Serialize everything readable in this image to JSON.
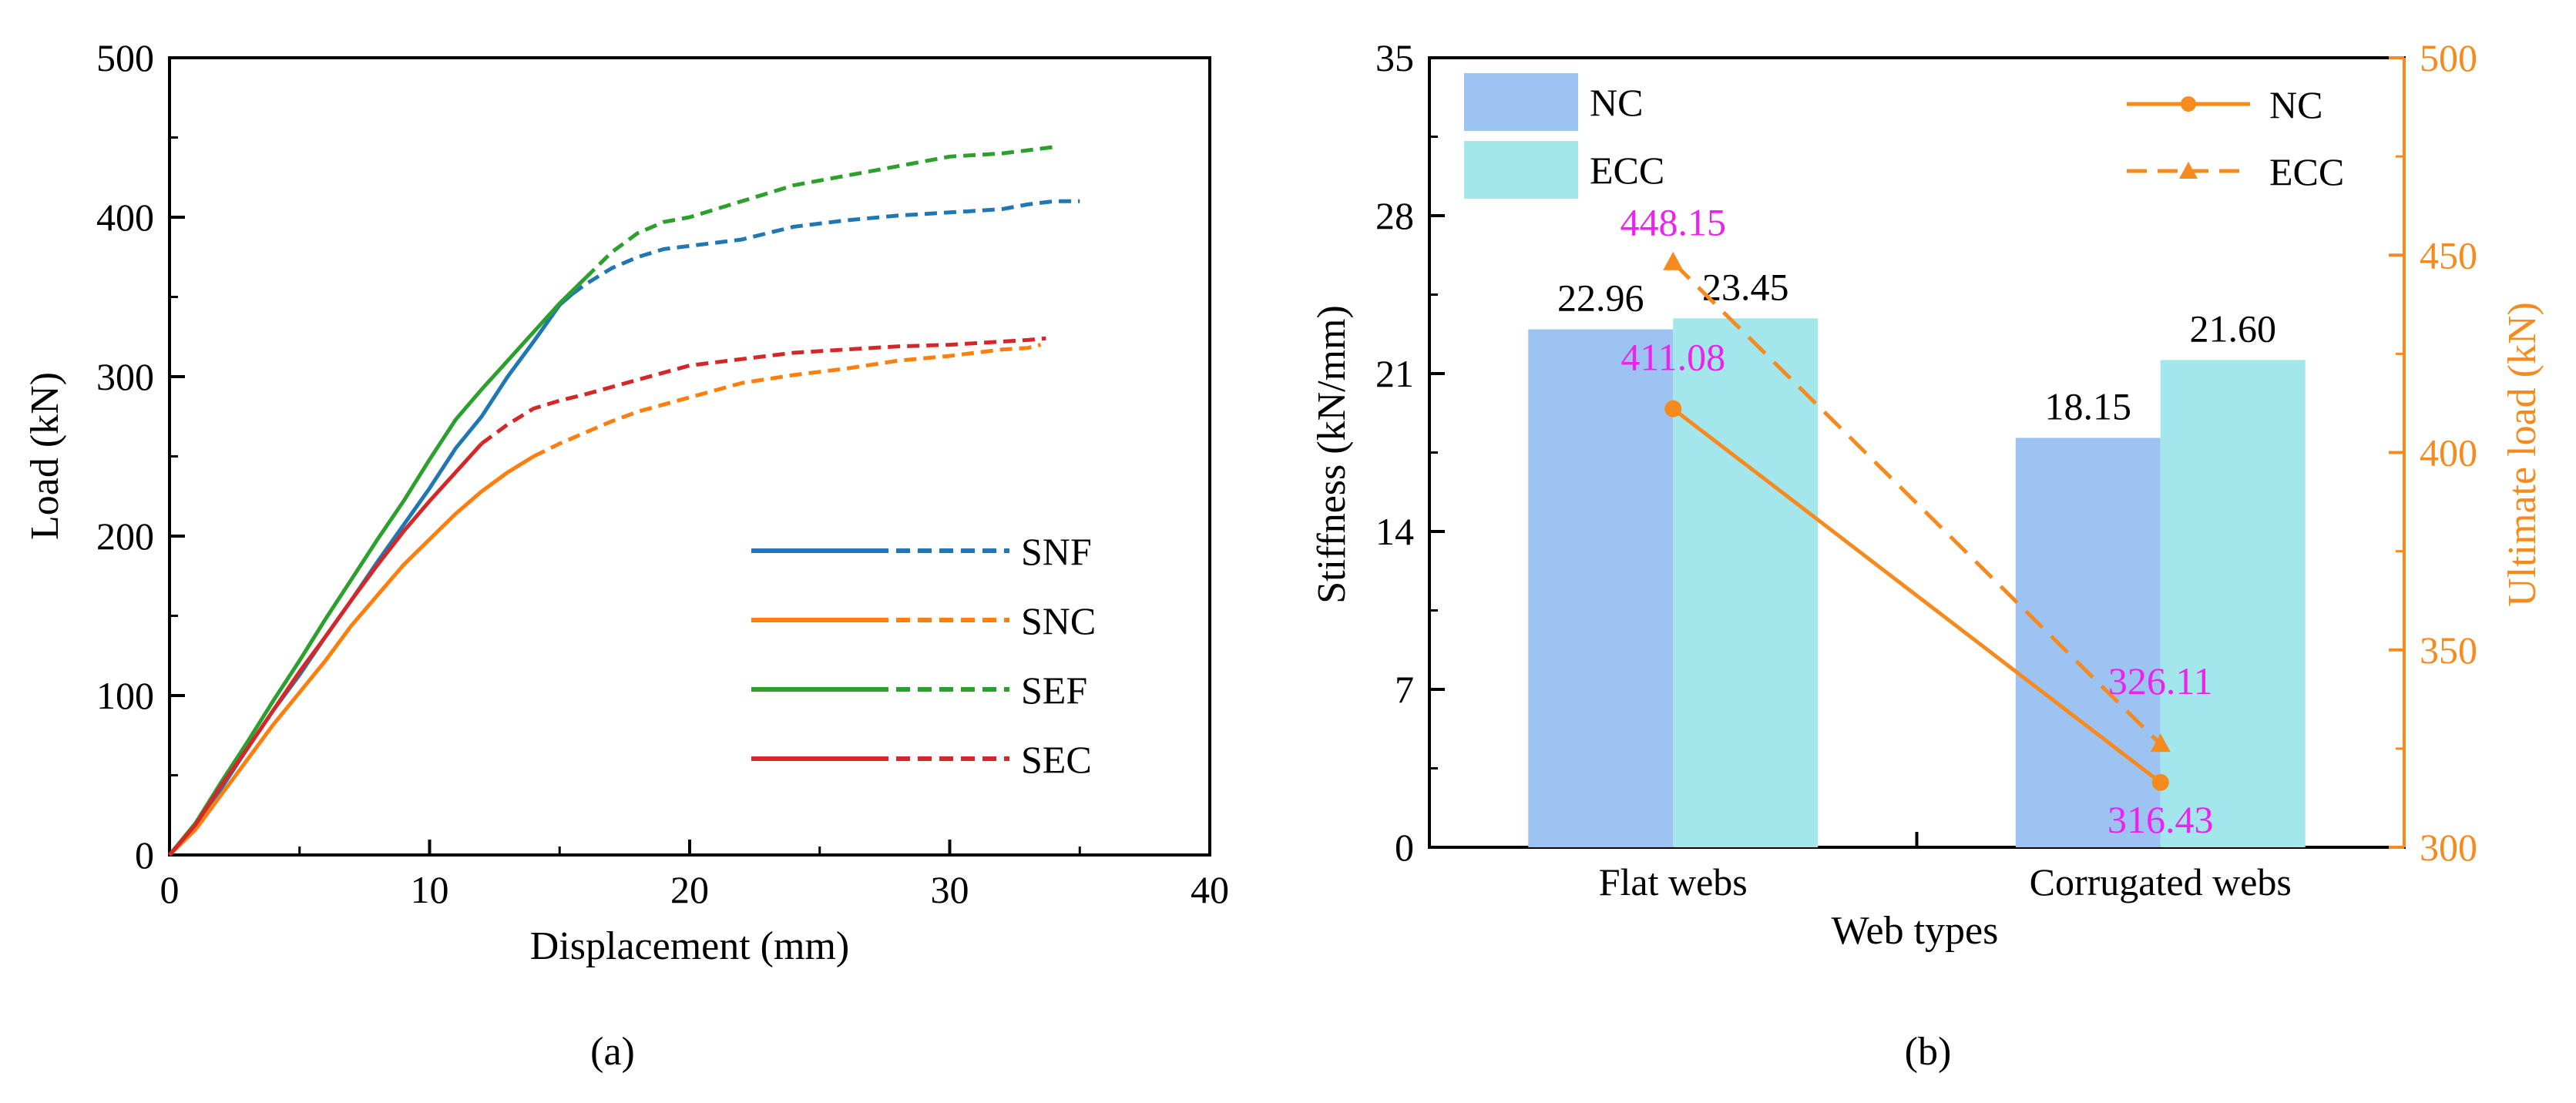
{
  "colors": {
    "SNF": "#1f77b4",
    "SNC": "#ff7f0e",
    "SEF": "#2ca02c",
    "SEC": "#d62728",
    "bar_nc": "#9cc3f2",
    "bar_ecc": "#a3e6ec",
    "line_orange": "#f58b1f",
    "annot": "#ee22ee"
  },
  "chart_data": [
    {
      "type": "line",
      "panel_label": "(a)",
      "xlabel": "Displacement (mm)",
      "ylabel": "Load (kN)",
      "xlim": [
        0,
        40
      ],
      "ylim": [
        0,
        500
      ],
      "xticks": [
        "0",
        "10",
        "20",
        "30",
        "40"
      ],
      "yticks": [
        "0",
        "100",
        "200",
        "300",
        "400",
        "500"
      ],
      "legend": [
        "SNF",
        "SNC",
        "SEF",
        "SEC"
      ],
      "series": [
        {
          "name": "SNF",
          "solid": [
            [
              0,
              0
            ],
            [
              1,
              18
            ],
            [
              2,
              42
            ],
            [
              3,
              67
            ],
            [
              4,
              91
            ],
            [
              5,
              113
            ],
            [
              6,
              137
            ],
            [
              7,
              160
            ],
            [
              8,
              184
            ],
            [
              9,
              207
            ],
            [
              10,
              230
            ],
            [
              11,
              255
            ],
            [
              12,
              275
            ],
            [
              13,
              300
            ],
            [
              14,
              322
            ],
            [
              15,
              345
            ],
            [
              15.5,
              352
            ]
          ],
          "dashed": [
            [
              15.5,
              352
            ],
            [
              16,
              358
            ],
            [
              17,
              368
            ],
            [
              18,
              375
            ],
            [
              19,
              380
            ],
            [
              20,
              382
            ],
            [
              22,
              386
            ],
            [
              24,
              394
            ],
            [
              26,
              398
            ],
            [
              28,
              401
            ],
            [
              30,
              403
            ],
            [
              32,
              405
            ],
            [
              33,
              408
            ],
            [
              34,
              410
            ],
            [
              35,
              410
            ]
          ]
        },
        {
          "name": "SNC",
          "solid": [
            [
              0,
              0
            ],
            [
              1,
              16
            ],
            [
              2,
              38
            ],
            [
              3,
              60
            ],
            [
              4,
              82
            ],
            [
              5,
              102
            ],
            [
              6,
              122
            ],
            [
              7,
              144
            ],
            [
              8,
              163
            ],
            [
              9,
              182
            ],
            [
              10,
              198
            ],
            [
              11,
              214
            ],
            [
              12,
              228
            ],
            [
              13,
              240
            ],
            [
              14,
              250
            ]
          ],
          "dashed": [
            [
              14,
              250
            ],
            [
              15,
              258
            ],
            [
              16,
              265
            ],
            [
              17,
              272
            ],
            [
              18,
              278
            ],
            [
              20,
              287
            ],
            [
              22,
              296
            ],
            [
              24,
              301
            ],
            [
              26,
              305
            ],
            [
              28,
              310
            ],
            [
              30,
              313
            ],
            [
              32,
              317
            ],
            [
              33,
              318
            ],
            [
              33.5,
              320
            ]
          ]
        },
        {
          "name": "SEF",
          "solid": [
            [
              0,
              0
            ],
            [
              1,
              20
            ],
            [
              2,
              46
            ],
            [
              3,
              71
            ],
            [
              4,
              97
            ],
            [
              5,
              122
            ],
            [
              6,
              148
            ],
            [
              7,
              173
            ],
            [
              8,
              198
            ],
            [
              9,
              222
            ],
            [
              10,
              248
            ],
            [
              11,
              273
            ],
            [
              12,
              292
            ],
            [
              13,
              310
            ],
            [
              14,
              328
            ],
            [
              15,
              346
            ],
            [
              16,
              362
            ]
          ],
          "dashed": [
            [
              16,
              362
            ],
            [
              17,
              378
            ],
            [
              18,
              390
            ],
            [
              19,
              397
            ],
            [
              20,
              400
            ],
            [
              22,
              410
            ],
            [
              24,
              420
            ],
            [
              26,
              426
            ],
            [
              28,
              432
            ],
            [
              30,
              438
            ],
            [
              32,
              440
            ],
            [
              33,
              442
            ],
            [
              34,
              444
            ]
          ]
        },
        {
          "name": "SEC",
          "solid": [
            [
              0,
              0
            ],
            [
              1,
              19
            ],
            [
              2,
              44
            ],
            [
              3,
              67
            ],
            [
              4,
              91
            ],
            [
              5,
              115
            ],
            [
              6,
              137
            ],
            [
              7,
              160
            ],
            [
              8,
              182
            ],
            [
              9,
              203
            ],
            [
              10,
              222
            ],
            [
              11,
              240
            ],
            [
              12,
              258
            ]
          ],
          "dashed": [
            [
              12,
              258
            ],
            [
              13,
              270
            ],
            [
              14,
              280
            ],
            [
              15,
              285
            ],
            [
              16,
              289
            ],
            [
              18,
              298
            ],
            [
              20,
              307
            ],
            [
              22,
              311
            ],
            [
              24,
              315
            ],
            [
              26,
              317
            ],
            [
              28,
              319
            ],
            [
              30,
              320
            ],
            [
              32,
              322
            ],
            [
              33,
              323
            ],
            [
              33.7,
              324
            ]
          ]
        }
      ]
    },
    {
      "type": "bar",
      "panel_label": "(b)",
      "xlabel": "Web types",
      "ylabel": "Stiffness (kN/mm)",
      "y2label": "Ultimate load (kN)",
      "categories": [
        "Flat webs",
        "Corrugated webs"
      ],
      "ylim": [
        0,
        35
      ],
      "yticks": [
        "0",
        "7",
        "14",
        "21",
        "28",
        "35"
      ],
      "y2lim": [
        300,
        500
      ],
      "y2ticks": [
        "300",
        "350",
        "400",
        "450",
        "500"
      ],
      "bar_series": [
        {
          "name": "NC",
          "values": [
            22.96,
            18.15
          ],
          "labels": [
            "22.96",
            "18.15"
          ]
        },
        {
          "name": "ECC",
          "values": [
            23.45,
            21.6
          ],
          "labels": [
            "23.45",
            "21.60"
          ]
        }
      ],
      "line_series": [
        {
          "name": "NC",
          "values": [
            411.08,
            316.43
          ],
          "labels": [
            "411.08",
            "316.43"
          ],
          "marker": "circle",
          "style": "solid"
        },
        {
          "name": "ECC",
          "values": [
            448.15,
            326.11
          ],
          "labels": [
            "448.15",
            "326.11"
          ],
          "marker": "triangle",
          "style": "dashed"
        }
      ],
      "legend_bars": [
        "NC",
        "ECC"
      ],
      "legend_lines": [
        "NC",
        "ECC"
      ]
    }
  ]
}
